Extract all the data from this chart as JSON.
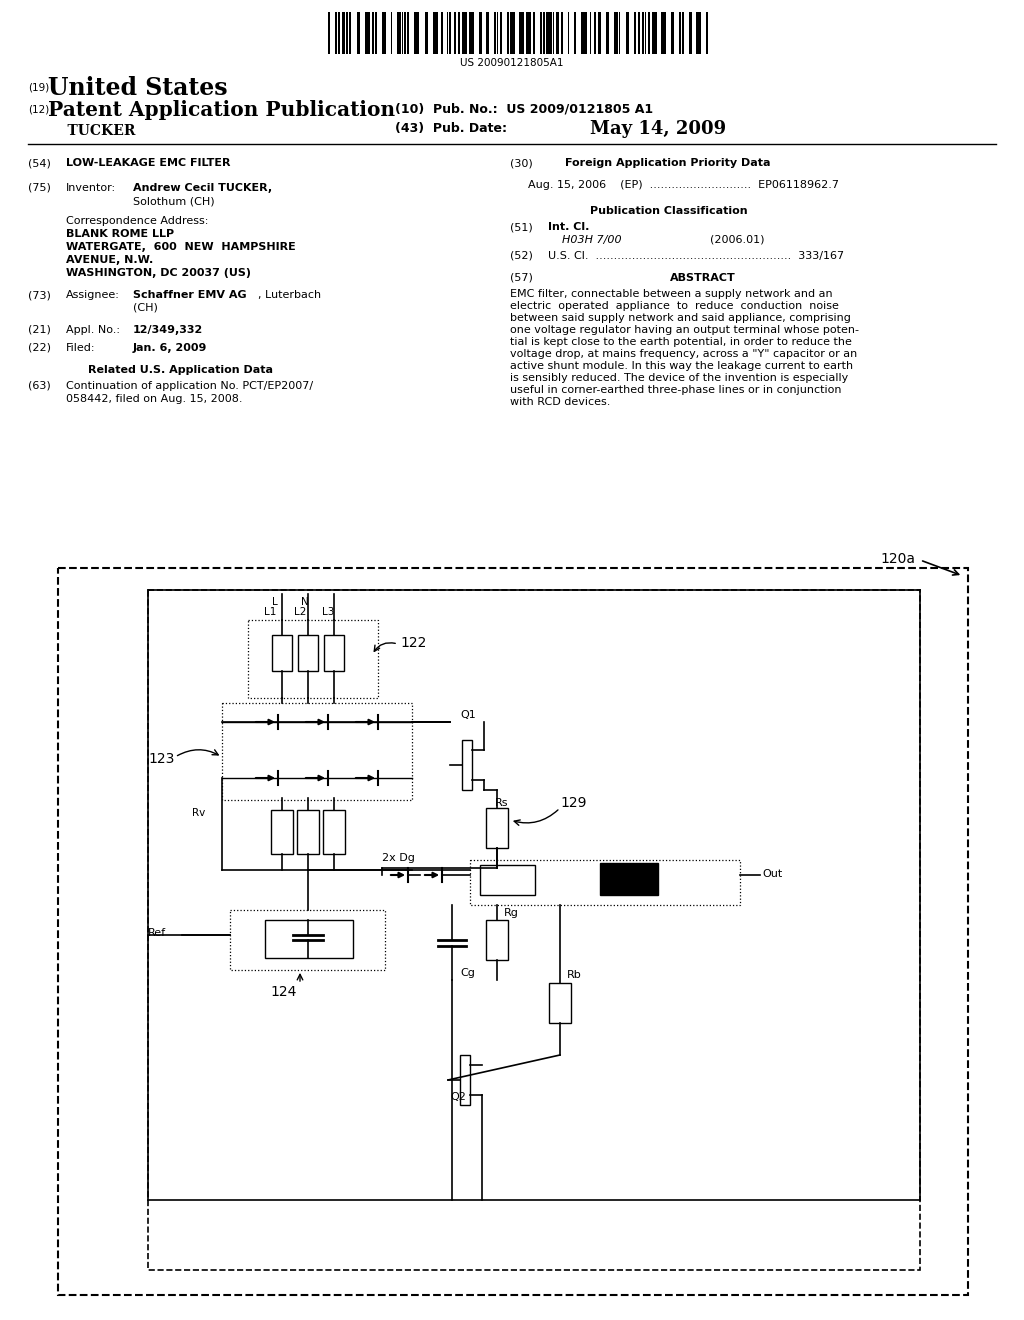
{
  "background_color": "#ffffff",
  "barcode_text": "US 20090121805A1",
  "header_left_19": "(19)",
  "header_left_us": "United States",
  "header_left_12": "(12)",
  "header_left_pap": "Patent Application Publication",
  "header_left_tucker": "    TUCKER",
  "header_right_10": "(10)  Pub. No.:  US 2009/0121805 A1",
  "header_right_43": "(43)  Pub. Date:",
  "header_right_date": "May 14, 2009",
  "field54_num": "(54)",
  "field54_val": "LOW-LEAKAGE EMC FILTER",
  "field75_num": "(75)",
  "field75_lbl": "Inventor:",
  "field75_name": "Andrew Cecil TUCKER,",
  "field75_city": "Solothum (CH)",
  "corr_lbl": "Correspondence Address:",
  "corr_1": "BLANK ROME LLP",
  "corr_2": "WATERGATE,  600  NEW  HAMPSHIRE",
  "corr_3": "AVENUE, N.W.",
  "corr_4": "WASHINGTON, DC 20037 (US)",
  "field73_num": "(73)",
  "field73_lbl": "Assignee:",
  "field73_val_bold": "Schaffner EMV AG",
  "field73_val_reg": ", Luterbach",
  "field73_val2": "(CH)",
  "field21_num": "(21)",
  "field21_lbl": "Appl. No.:",
  "field21_val": "12/349,332",
  "field22_num": "(22)",
  "field22_lbl": "Filed:",
  "field22_val": "Jan. 6, 2009",
  "related_us": "Related U.S. Application Data",
  "field63_num": "(63)",
  "field63_line1": "Continuation of application No. PCT/EP2007/",
  "field63_line2": "058442, filed on Aug. 15, 2008.",
  "field30_num": "(30)",
  "field30_title": "Foreign Application Priority Data",
  "field30_val": "Aug. 15, 2006    (EP)  ............................  EP06118962.7",
  "pub_class_title": "Publication Classification",
  "field51_num": "(51)",
  "field51_lbl": "Int. Cl.",
  "field51_val1": "H03H 7/00",
  "field51_val2": "(2006.01)",
  "field52_num": "(52)",
  "field52_val": "U.S. Cl.  ......................................................  333/167",
  "field57_num": "(57)",
  "field57_title": "ABSTRACT",
  "abstract_lines": [
    "EMC filter, connectable between a supply network and an",
    "electric  operated  appliance  to  reduce  conduction  noise",
    "between said supply network and said appliance, comprising",
    "one voltage regulator having an output terminal whose poten-",
    "tial is kept close to the earth potential, in order to reduce the",
    "voltage drop, at mains frequency, across a \"Y\" capacitor or an",
    "active shunt module. In this way the leakage current to earth",
    "is sensibly reduced. The device of the invention is especially",
    "useful in corner-earthed three-phase lines or in conjunction",
    "with RCD devices."
  ],
  "diagram_label_120a": "120a",
  "diagram_label_122": "122",
  "diagram_label_123": "123",
  "diagram_label_124": "124",
  "diagram_label_129": "129",
  "diagram_label_L": "L",
  "diagram_label_N": "N",
  "diagram_label_L1": "L1",
  "diagram_label_L2": "L2",
  "diagram_label_L3": "L3",
  "diagram_label_Q1": "Q1",
  "diagram_label_Q2": "Q2",
  "diagram_label_Rv": "Rv",
  "diagram_label_Rs": "Rs",
  "diagram_label_Rb": "Rb",
  "diagram_label_Rg": "Rg",
  "diagram_label_Cg": "Cg",
  "diagram_label_2xDg": "2x Dg",
  "diagram_label_Ref": "Ref",
  "diagram_label_Out": "Out"
}
